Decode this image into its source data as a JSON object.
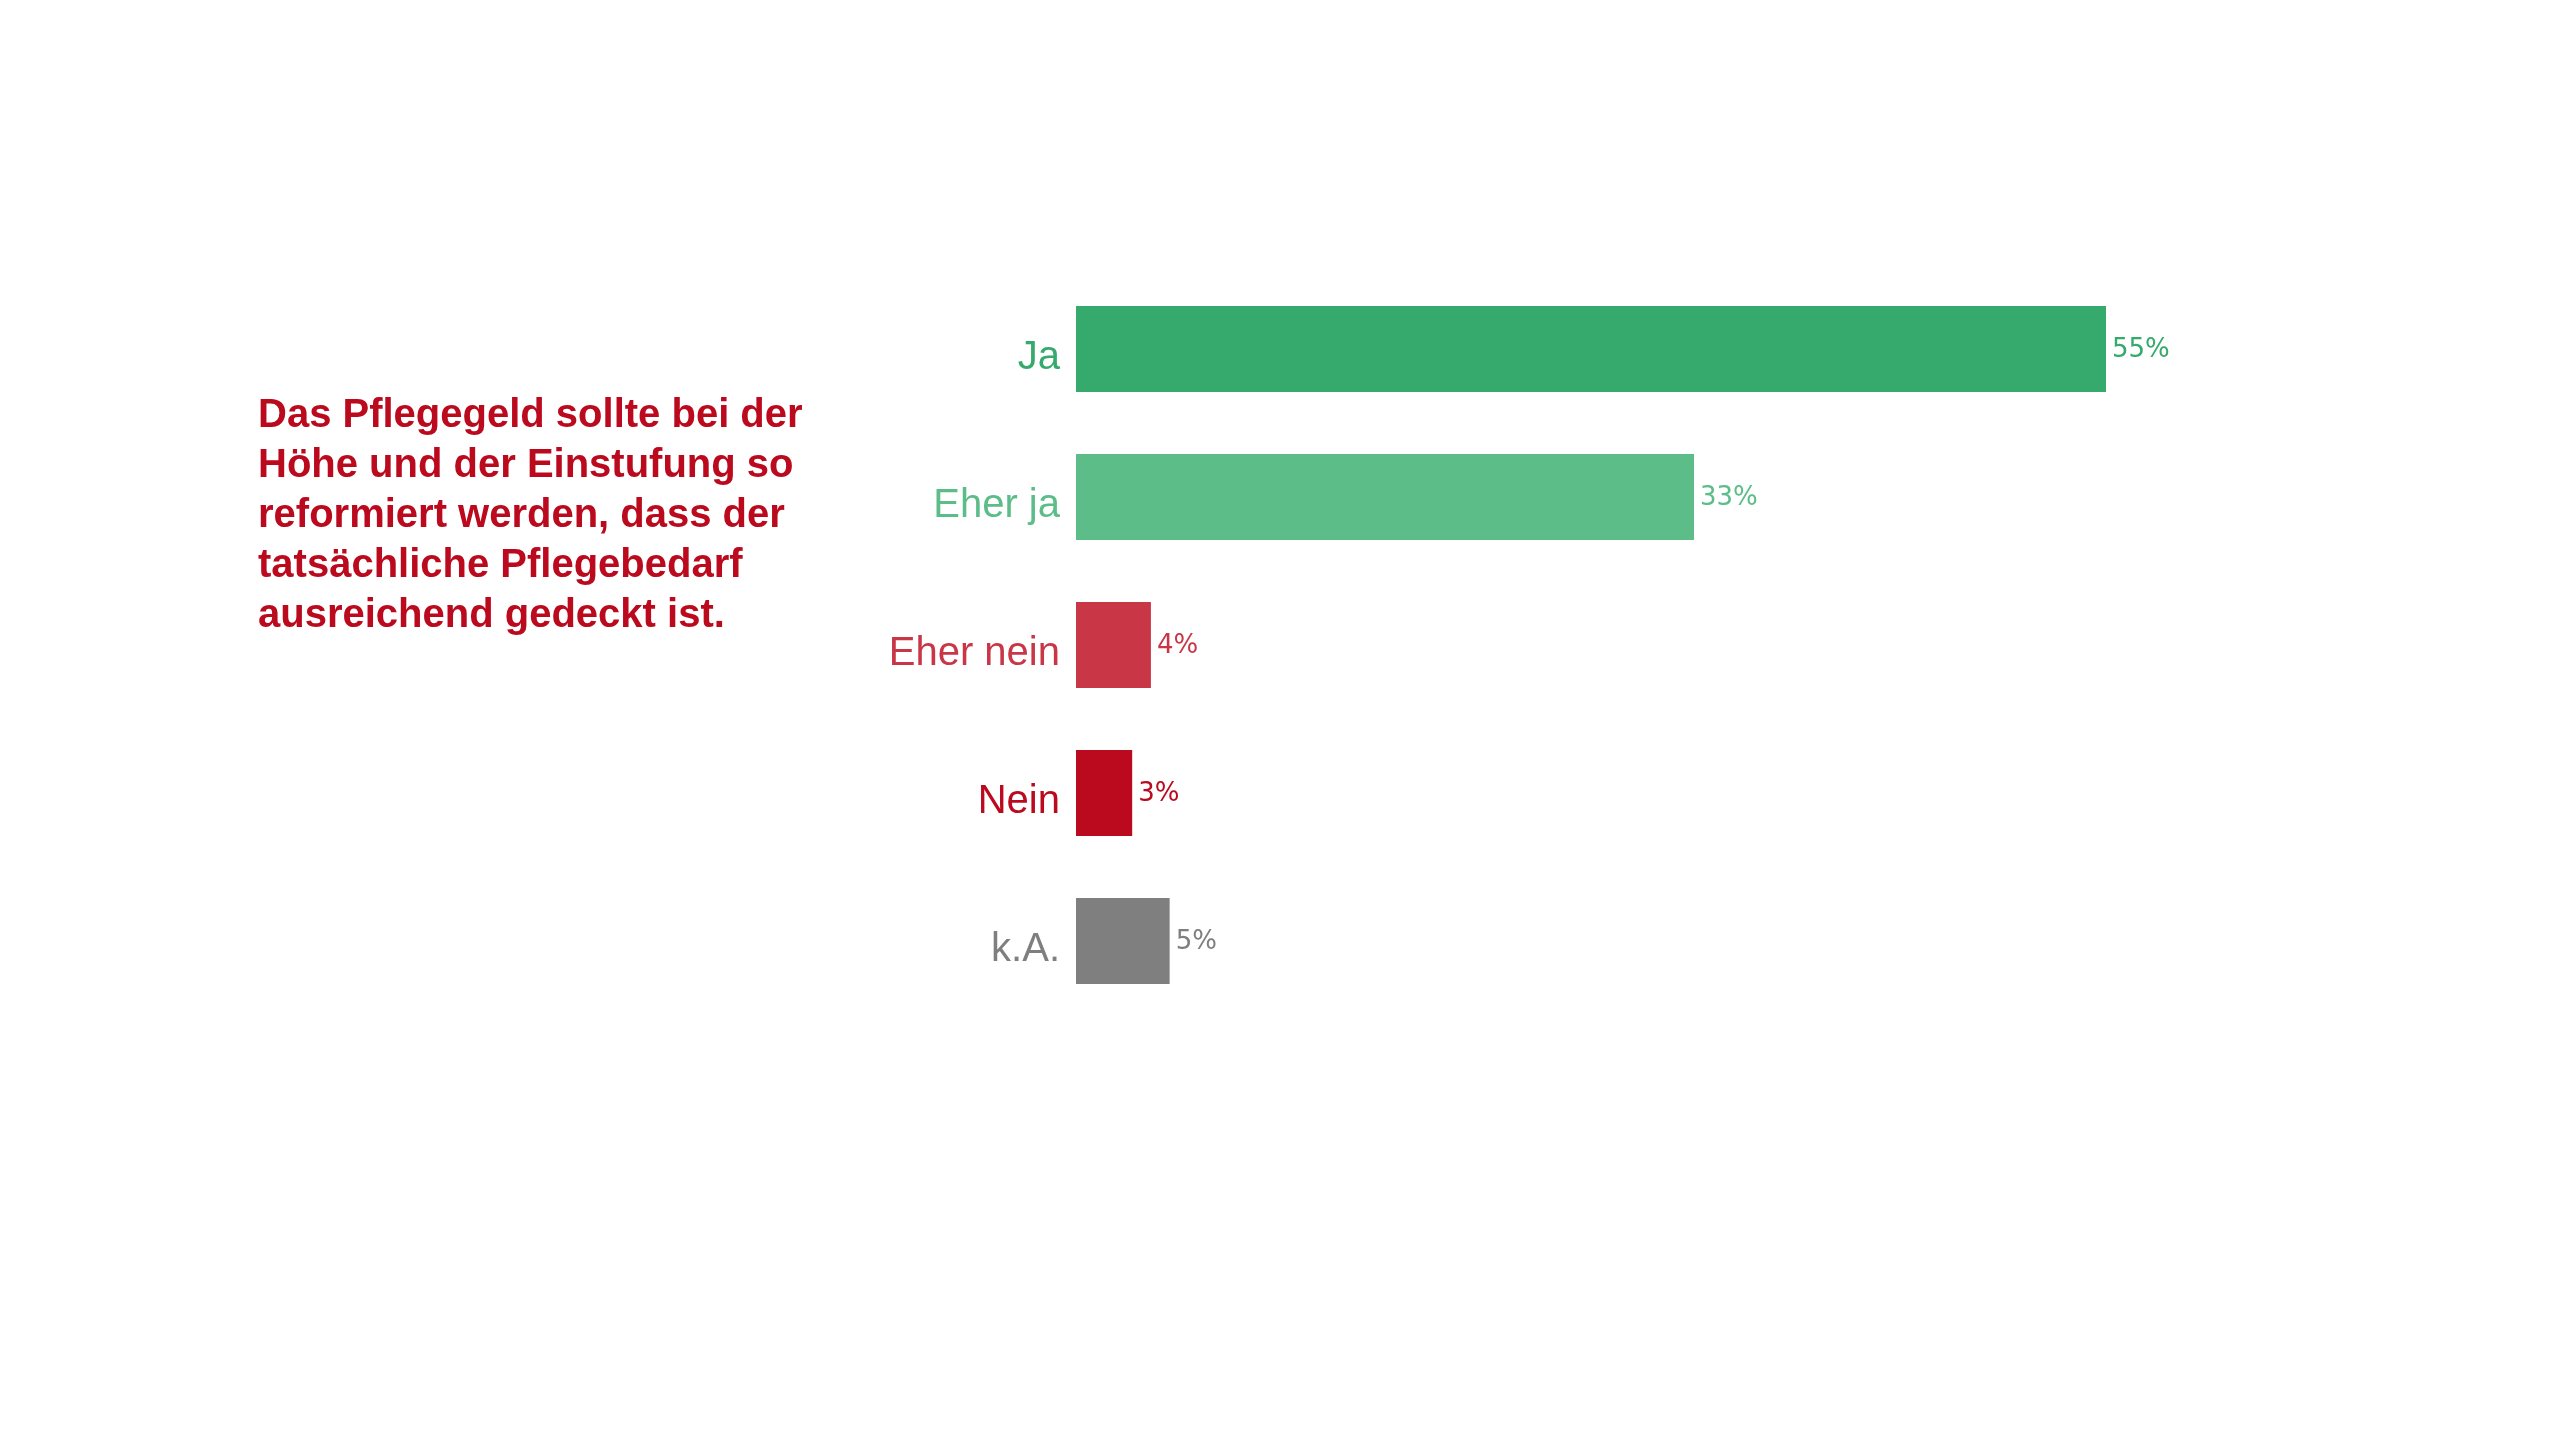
{
  "chart_data": {
    "type": "bar",
    "orientation": "horizontal",
    "title": "Das Pflegegeld sollte bei der Höhe und der Einstufung so reformiert werden, dass der tatsächliche Pflegebedarf ausreichend gedeckt ist.",
    "categories": [
      "Ja",
      "Eher ja",
      "Eher nein",
      "Nein",
      "k.A."
    ],
    "values": [
      55,
      33,
      4,
      3,
      5
    ],
    "colors": [
      "#36aa6c",
      "#5cbd89",
      "#c93747",
      "#bb0a1e",
      "#7f7f7f"
    ],
    "value_labels": [
      "55%",
      "33%",
      "4%",
      "3%",
      "5%"
    ]
  }
}
